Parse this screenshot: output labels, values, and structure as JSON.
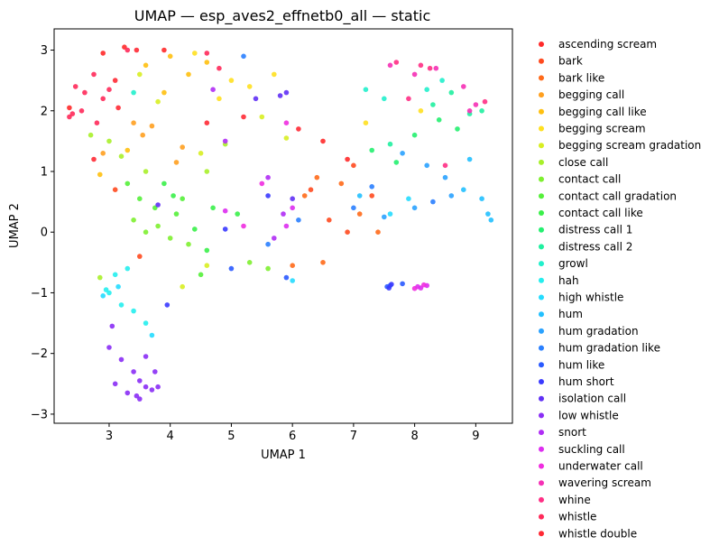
{
  "chart_data": {
    "type": "scatter",
    "title": "UMAP — esp_aves2_effnetb0_all — static",
    "xlabel": "UMAP 1",
    "ylabel": "UMAP 2",
    "xlim": [
      2.1,
      9.6
    ],
    "ylim": [
      -3.15,
      3.35
    ],
    "xticks": [
      3,
      4,
      5,
      6,
      7,
      8,
      9
    ],
    "yticks": [
      -3,
      -2,
      -1,
      0,
      1,
      2,
      3
    ],
    "grid": false,
    "legend_position": "right, outside plot",
    "series": [
      {
        "name": "ascending scream",
        "color": "#ff2a2a",
        "points": [
          [
            2.9,
            2.95
          ],
          [
            3.25,
            3.05
          ],
          [
            3.9,
            3.0
          ],
          [
            6.5,
            1.5
          ],
          [
            6.9,
            1.2
          ],
          [
            2.35,
            2.05
          ]
        ]
      },
      {
        "name": "bark",
        "color": "#ff4a1f",
        "points": [
          [
            3.1,
            0.7
          ],
          [
            3.5,
            -0.4
          ],
          [
            6.3,
            0.7
          ],
          [
            6.6,
            0.2
          ],
          [
            6.9,
            0.0
          ],
          [
            7.0,
            1.1
          ],
          [
            7.3,
            0.6
          ]
        ]
      },
      {
        "name": "bark like",
        "color": "#ff6a1a",
        "points": [
          [
            6.2,
            0.6
          ],
          [
            6.4,
            0.9
          ],
          [
            6.8,
            0.8
          ],
          [
            7.1,
            0.3
          ],
          [
            7.4,
            0.0
          ],
          [
            6.0,
            -0.55
          ],
          [
            6.5,
            -0.5
          ]
        ]
      },
      {
        "name": "begging call",
        "color": "#ffa020",
        "points": [
          [
            3.4,
            1.8
          ],
          [
            3.55,
            1.6
          ],
          [
            3.7,
            1.75
          ],
          [
            4.2,
            1.4
          ],
          [
            4.1,
            1.15
          ],
          [
            2.9,
            1.3
          ]
        ]
      },
      {
        "name": "begging call like",
        "color": "#ffc010",
        "points": [
          [
            3.6,
            2.75
          ],
          [
            3.9,
            2.3
          ],
          [
            4.0,
            2.9
          ],
          [
            4.3,
            2.6
          ],
          [
            4.6,
            2.8
          ],
          [
            3.3,
            1.35
          ],
          [
            2.85,
            0.95
          ]
        ]
      },
      {
        "name": "begging scream",
        "color": "#ffe020",
        "points": [
          [
            4.4,
            2.95
          ],
          [
            4.8,
            2.2
          ],
          [
            5.0,
            2.5
          ],
          [
            5.3,
            2.4
          ],
          [
            5.7,
            2.6
          ],
          [
            7.2,
            1.8
          ],
          [
            8.1,
            2.0
          ]
        ]
      },
      {
        "name": "begging scream gradation",
        "color": "#d8ee22",
        "points": [
          [
            3.5,
            2.6
          ],
          [
            3.8,
            2.15
          ],
          [
            4.5,
            1.3
          ],
          [
            4.2,
            -0.9
          ],
          [
            4.6,
            -0.55
          ],
          [
            5.5,
            1.9
          ],
          [
            5.9,
            1.55
          ]
        ]
      },
      {
        "name": "close call",
        "color": "#a8f02a",
        "points": [
          [
            2.7,
            1.6
          ],
          [
            3.0,
            1.5
          ],
          [
            3.2,
            1.25
          ],
          [
            3.6,
            1.0
          ],
          [
            4.6,
            1.0
          ],
          [
            4.9,
            1.45
          ],
          [
            2.85,
            -0.75
          ]
        ]
      },
      {
        "name": "contact call",
        "color": "#7ef030",
        "points": [
          [
            3.4,
            0.2
          ],
          [
            3.6,
            0.0
          ],
          [
            3.8,
            0.1
          ],
          [
            4.0,
            -0.1
          ],
          [
            4.3,
            -0.2
          ],
          [
            5.3,
            -0.5
          ],
          [
            5.6,
            -0.6
          ]
        ]
      },
      {
        "name": "contact call gradation",
        "color": "#55f03a",
        "points": [
          [
            3.3,
            0.8
          ],
          [
            3.5,
            0.55
          ],
          [
            3.75,
            0.4
          ],
          [
            4.1,
            0.3
          ],
          [
            4.2,
            0.55
          ],
          [
            4.5,
            -0.7
          ]
        ]
      },
      {
        "name": "contact call like",
        "color": "#3af04a",
        "points": [
          [
            3.9,
            0.8
          ],
          [
            4.05,
            0.6
          ],
          [
            4.4,
            0.05
          ],
          [
            4.6,
            -0.3
          ],
          [
            4.7,
            0.4
          ],
          [
            5.1,
            0.3
          ]
        ]
      },
      {
        "name": "distress call 1",
        "color": "#25f070",
        "points": [
          [
            7.3,
            1.35
          ],
          [
            7.7,
            1.15
          ],
          [
            8.0,
            1.6
          ],
          [
            8.4,
            1.85
          ],
          [
            8.7,
            1.7
          ]
        ]
      },
      {
        "name": "distress call 2",
        "color": "#20f0a0",
        "points": [
          [
            7.6,
            1.45
          ],
          [
            8.3,
            2.1
          ],
          [
            8.6,
            2.3
          ],
          [
            8.9,
            1.95
          ],
          [
            9.1,
            2.0
          ]
        ]
      },
      {
        "name": "growl",
        "color": "#22f0cc",
        "points": [
          [
            7.5,
            2.2
          ],
          [
            8.2,
            2.35
          ],
          [
            8.45,
            2.5
          ],
          [
            7.2,
            2.35
          ],
          [
            3.4,
            2.3
          ]
        ]
      },
      {
        "name": "hah",
        "color": "#25eeee",
        "points": [
          [
            3.1,
            -0.7
          ],
          [
            3.3,
            -0.6
          ],
          [
            3.0,
            -1.0
          ],
          [
            3.2,
            -1.2
          ],
          [
            3.6,
            -1.5
          ],
          [
            3.4,
            -1.3
          ],
          [
            2.95,
            -0.95
          ]
        ]
      },
      {
        "name": "high whistle",
        "color": "#25dcff",
        "points": [
          [
            2.9,
            -1.05
          ],
          [
            3.15,
            -0.9
          ],
          [
            3.7,
            -1.7
          ],
          [
            7.6,
            0.3
          ],
          [
            7.9,
            0.55
          ],
          [
            6.0,
            -0.8
          ]
        ]
      },
      {
        "name": "hum",
        "color": "#22c0ff",
        "points": [
          [
            8.9,
            1.2
          ],
          [
            9.2,
            0.3
          ],
          [
            9.25,
            0.2
          ],
          [
            8.8,
            0.7
          ],
          [
            9.1,
            0.55
          ],
          [
            7.1,
            0.6
          ]
        ]
      },
      {
        "name": "hum gradation",
        "color": "#2aa2ff",
        "points": [
          [
            7.8,
            1.3
          ],
          [
            8.2,
            1.1
          ],
          [
            8.5,
            0.9
          ],
          [
            8.6,
            0.6
          ],
          [
            8.0,
            0.4
          ],
          [
            7.5,
            0.25
          ]
        ]
      },
      {
        "name": "hum gradation like",
        "color": "#2a80ff",
        "points": [
          [
            7.3,
            0.75
          ],
          [
            7.0,
            0.4
          ],
          [
            8.3,
            0.5
          ],
          [
            5.6,
            -0.2
          ],
          [
            6.1,
            0.2
          ],
          [
            5.2,
            2.9
          ]
        ]
      },
      {
        "name": "hum like",
        "color": "#2a5aff",
        "points": [
          [
            7.55,
            -0.9
          ],
          [
            7.6,
            -0.88
          ],
          [
            7.8,
            -0.85
          ],
          [
            5.0,
            -0.6
          ],
          [
            5.9,
            -0.75
          ]
        ]
      },
      {
        "name": "hum short",
        "color": "#3a3aff",
        "points": [
          [
            7.58,
            -0.92
          ],
          [
            7.62,
            -0.86
          ],
          [
            3.95,
            -1.2
          ],
          [
            5.6,
            0.6
          ],
          [
            4.9,
            0.05
          ]
        ]
      },
      {
        "name": "isolation call",
        "color": "#6030f5",
        "points": [
          [
            5.8,
            2.25
          ],
          [
            5.9,
            2.3
          ],
          [
            6.0,
            0.55
          ],
          [
            5.4,
            2.2
          ],
          [
            3.8,
            0.45
          ]
        ]
      },
      {
        "name": "low whistle",
        "color": "#8a2ef5",
        "points": [
          [
            3.1,
            -2.5
          ],
          [
            3.3,
            -2.65
          ],
          [
            3.5,
            -2.75
          ],
          [
            3.6,
            -2.55
          ],
          [
            3.7,
            -2.6
          ],
          [
            3.8,
            -2.55
          ],
          [
            3.0,
            -1.9
          ],
          [
            3.2,
            -2.1
          ],
          [
            3.4,
            -2.3
          ],
          [
            3.05,
            -1.55
          ],
          [
            3.75,
            -2.3
          ],
          [
            3.6,
            -2.05
          ],
          [
            3.5,
            -2.45
          ],
          [
            3.45,
            -2.7
          ]
        ]
      },
      {
        "name": "snort",
        "color": "#b02ef5",
        "points": [
          [
            5.6,
            0.9
          ],
          [
            5.85,
            0.3
          ],
          [
            4.7,
            2.35
          ],
          [
            4.9,
            1.5
          ],
          [
            5.7,
            -0.1
          ]
        ]
      },
      {
        "name": "suckling call",
        "color": "#dd2ef0",
        "points": [
          [
            8.05,
            -0.9
          ],
          [
            8.1,
            -0.92
          ],
          [
            8.2,
            -0.88
          ],
          [
            5.9,
            0.1
          ],
          [
            6.0,
            0.4
          ],
          [
            4.9,
            0.35
          ]
        ]
      },
      {
        "name": "underwater call",
        "color": "#f02ee0",
        "points": [
          [
            8.0,
            -0.93
          ],
          [
            8.15,
            -0.87
          ],
          [
            5.2,
            0.1
          ],
          [
            5.5,
            0.8
          ],
          [
            5.9,
            1.8
          ]
        ]
      },
      {
        "name": "wavering scream",
        "color": "#f530b5",
        "points": [
          [
            7.6,
            2.75
          ],
          [
            8.0,
            2.6
          ],
          [
            8.35,
            2.7
          ],
          [
            8.8,
            2.4
          ],
          [
            8.9,
            2.0
          ],
          [
            9.0,
            2.1
          ]
        ]
      },
      {
        "name": "whine",
        "color": "#ff2f85",
        "points": [
          [
            7.7,
            2.8
          ],
          [
            8.1,
            2.75
          ],
          [
            8.25,
            2.7
          ],
          [
            7.9,
            2.2
          ],
          [
            8.5,
            1.1
          ],
          [
            9.15,
            2.15
          ]
        ]
      },
      {
        "name": "whistle",
        "color": "#ff2a5a",
        "points": [
          [
            2.35,
            1.9
          ],
          [
            2.45,
            2.4
          ],
          [
            2.6,
            2.3
          ],
          [
            2.75,
            2.6
          ],
          [
            2.9,
            2.2
          ],
          [
            3.3,
            3.0
          ],
          [
            4.6,
            2.95
          ],
          [
            4.8,
            2.7
          ],
          [
            2.55,
            2.0
          ],
          [
            2.4,
            1.95
          ],
          [
            2.8,
            1.8
          ],
          [
            3.0,
            2.35
          ]
        ]
      },
      {
        "name": "whistle double",
        "color": "#ff2a35",
        "points": [
          [
            3.45,
            3.0
          ],
          [
            3.1,
            2.5
          ],
          [
            4.6,
            1.8
          ],
          [
            5.2,
            1.9
          ],
          [
            6.1,
            1.7
          ],
          [
            2.75,
            1.2
          ],
          [
            3.15,
            2.05
          ]
        ]
      }
    ]
  }
}
